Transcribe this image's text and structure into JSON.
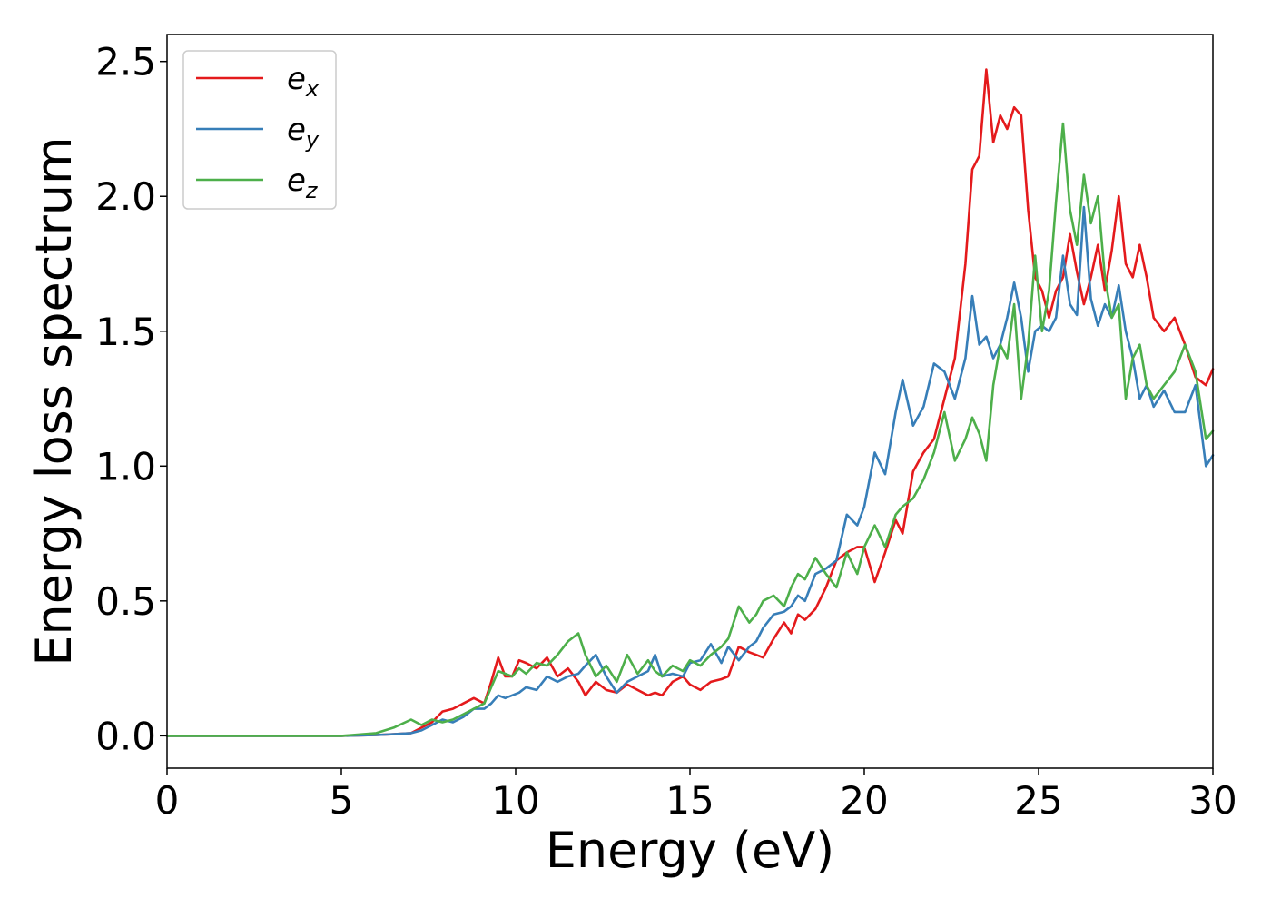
{
  "chart_data": {
    "type": "line",
    "title": "",
    "xlabel": "Energy (eV)",
    "ylabel": "Energy loss spectrum",
    "xlim": [
      0,
      30
    ],
    "ylim": [
      -0.12,
      2.6
    ],
    "xticks": [
      0,
      5,
      10,
      15,
      20,
      25,
      30
    ],
    "yticks": [
      0.0,
      0.5,
      1.0,
      1.5,
      2.0,
      2.5
    ],
    "xtick_labels": [
      "0",
      "5",
      "10",
      "15",
      "20",
      "25",
      "30"
    ],
    "ytick_labels": [
      "0.0",
      "0.5",
      "1.0",
      "1.5",
      "2.0",
      "2.5"
    ],
    "grid": false,
    "legend": "top-left",
    "series": [
      {
        "name": "e_x",
        "label_base": "e",
        "label_sub": "x",
        "color": "#e41a1c",
        "x": [
          0,
          5,
          6,
          6.5,
          7,
          7.3,
          7.6,
          7.9,
          8.2,
          8.5,
          8.8,
          9.1,
          9.3,
          9.5,
          9.7,
          9.9,
          10.1,
          10.3,
          10.6,
          10.9,
          11.2,
          11.5,
          11.8,
          12.0,
          12.3,
          12.6,
          12.9,
          13.2,
          13.5,
          13.8,
          14.0,
          14.2,
          14.5,
          14.8,
          15.0,
          15.3,
          15.6,
          15.9,
          16.1,
          16.4,
          16.7,
          16.9,
          17.1,
          17.4,
          17.7,
          17.9,
          18.1,
          18.3,
          18.6,
          18.9,
          19.2,
          19.5,
          19.8,
          20.0,
          20.3,
          20.6,
          20.9,
          21.1,
          21.4,
          21.7,
          22.0,
          22.3,
          22.6,
          22.9,
          23.1,
          23.3,
          23.5,
          23.7,
          23.9,
          24.1,
          24.3,
          24.5,
          24.7,
          24.9,
          25.1,
          25.3,
          25.5,
          25.7,
          25.9,
          26.1,
          26.3,
          26.5,
          26.7,
          26.9,
          27.1,
          27.3,
          27.5,
          27.7,
          27.9,
          28.1,
          28.3,
          28.6,
          28.9,
          29.2,
          29.5,
          29.8,
          30
        ],
        "y": [
          0,
          0,
          0.003,
          0.006,
          0.01,
          0.03,
          0.05,
          0.09,
          0.1,
          0.12,
          0.14,
          0.12,
          0.2,
          0.29,
          0.22,
          0.22,
          0.28,
          0.27,
          0.25,
          0.29,
          0.22,
          0.25,
          0.2,
          0.15,
          0.2,
          0.17,
          0.16,
          0.19,
          0.17,
          0.15,
          0.16,
          0.15,
          0.2,
          0.22,
          0.19,
          0.17,
          0.2,
          0.21,
          0.22,
          0.33,
          0.31,
          0.3,
          0.29,
          0.36,
          0.42,
          0.38,
          0.45,
          0.43,
          0.47,
          0.55,
          0.65,
          0.68,
          0.7,
          0.7,
          0.57,
          0.68,
          0.8,
          0.75,
          0.98,
          1.05,
          1.1,
          1.25,
          1.4,
          1.75,
          2.1,
          2.15,
          2.47,
          2.2,
          2.3,
          2.25,
          2.33,
          2.3,
          1.95,
          1.7,
          1.65,
          1.55,
          1.65,
          1.7,
          1.86,
          1.72,
          1.6,
          1.7,
          1.82,
          1.65,
          1.8,
          2.0,
          1.75,
          1.7,
          1.82,
          1.7,
          1.55,
          1.5,
          1.55,
          1.45,
          1.33,
          1.3,
          1.36
        ]
      },
      {
        "name": "e_y",
        "label_base": "e",
        "label_sub": "y",
        "color": "#377eb8",
        "x": [
          0,
          5,
          6,
          6.5,
          7,
          7.3,
          7.6,
          7.9,
          8.2,
          8.5,
          8.8,
          9.1,
          9.3,
          9.5,
          9.7,
          9.9,
          10.1,
          10.3,
          10.6,
          10.9,
          11.2,
          11.5,
          11.8,
          12.0,
          12.3,
          12.6,
          12.9,
          13.2,
          13.5,
          13.8,
          14.0,
          14.2,
          14.5,
          14.8,
          15.0,
          15.3,
          15.6,
          15.9,
          16.1,
          16.4,
          16.7,
          16.9,
          17.1,
          17.4,
          17.7,
          17.9,
          18.1,
          18.3,
          18.6,
          18.9,
          19.2,
          19.5,
          19.8,
          20.0,
          20.3,
          20.6,
          20.9,
          21.1,
          21.4,
          21.7,
          22.0,
          22.3,
          22.6,
          22.9,
          23.1,
          23.3,
          23.5,
          23.7,
          23.9,
          24.1,
          24.3,
          24.5,
          24.7,
          24.9,
          25.1,
          25.3,
          25.5,
          25.7,
          25.9,
          26.1,
          26.3,
          26.5,
          26.7,
          26.9,
          27.1,
          27.3,
          27.5,
          27.7,
          27.9,
          28.1,
          28.3,
          28.6,
          28.9,
          29.2,
          29.5,
          29.8,
          30
        ],
        "y": [
          0,
          0,
          0.003,
          0.006,
          0.01,
          0.02,
          0.04,
          0.06,
          0.05,
          0.07,
          0.1,
          0.1,
          0.12,
          0.15,
          0.14,
          0.15,
          0.16,
          0.18,
          0.17,
          0.22,
          0.2,
          0.22,
          0.23,
          0.26,
          0.3,
          0.22,
          0.16,
          0.2,
          0.22,
          0.24,
          0.3,
          0.22,
          0.23,
          0.22,
          0.27,
          0.28,
          0.34,
          0.27,
          0.33,
          0.28,
          0.33,
          0.35,
          0.4,
          0.45,
          0.46,
          0.48,
          0.52,
          0.5,
          0.6,
          0.62,
          0.65,
          0.82,
          0.78,
          0.85,
          1.05,
          0.97,
          1.2,
          1.32,
          1.15,
          1.22,
          1.38,
          1.35,
          1.25,
          1.4,
          1.63,
          1.45,
          1.48,
          1.4,
          1.45,
          1.55,
          1.68,
          1.55,
          1.35,
          1.5,
          1.52,
          1.5,
          1.55,
          1.78,
          1.6,
          1.56,
          1.96,
          1.62,
          1.52,
          1.6,
          1.55,
          1.67,
          1.5,
          1.4,
          1.25,
          1.3,
          1.22,
          1.28,
          1.2,
          1.2,
          1.3,
          1.0,
          1.04
        ]
      },
      {
        "name": "e_z",
        "label_base": "e",
        "label_sub": "z",
        "color": "#4daf4a",
        "x": [
          0,
          5,
          6,
          6.5,
          7,
          7.3,
          7.6,
          7.9,
          8.2,
          8.5,
          8.8,
          9.1,
          9.3,
          9.5,
          9.7,
          9.9,
          10.1,
          10.3,
          10.6,
          10.9,
          11.2,
          11.5,
          11.8,
          12.0,
          12.3,
          12.6,
          12.9,
          13.2,
          13.5,
          13.8,
          14.0,
          14.2,
          14.5,
          14.8,
          15.0,
          15.3,
          15.6,
          15.9,
          16.1,
          16.4,
          16.7,
          16.9,
          17.1,
          17.4,
          17.7,
          17.9,
          18.1,
          18.3,
          18.6,
          18.9,
          19.2,
          19.5,
          19.8,
          20.0,
          20.3,
          20.6,
          20.9,
          21.1,
          21.4,
          21.7,
          22.0,
          22.3,
          22.6,
          22.9,
          23.1,
          23.3,
          23.5,
          23.7,
          23.9,
          24.1,
          24.3,
          24.5,
          24.7,
          24.9,
          25.1,
          25.3,
          25.5,
          25.7,
          25.9,
          26.1,
          26.3,
          26.5,
          26.7,
          26.9,
          27.1,
          27.3,
          27.5,
          27.7,
          27.9,
          28.1,
          28.3,
          28.6,
          28.9,
          29.2,
          29.5,
          29.8,
          30
        ],
        "y": [
          0,
          0,
          0.01,
          0.03,
          0.06,
          0.04,
          0.06,
          0.05,
          0.06,
          0.08,
          0.1,
          0.12,
          0.18,
          0.24,
          0.23,
          0.22,
          0.25,
          0.23,
          0.27,
          0.26,
          0.3,
          0.35,
          0.38,
          0.3,
          0.22,
          0.26,
          0.2,
          0.3,
          0.23,
          0.28,
          0.24,
          0.22,
          0.26,
          0.24,
          0.28,
          0.26,
          0.3,
          0.33,
          0.36,
          0.48,
          0.42,
          0.45,
          0.5,
          0.52,
          0.48,
          0.55,
          0.6,
          0.58,
          0.66,
          0.6,
          0.55,
          0.68,
          0.6,
          0.7,
          0.78,
          0.7,
          0.82,
          0.85,
          0.88,
          0.95,
          1.05,
          1.2,
          1.02,
          1.1,
          1.18,
          1.12,
          1.02,
          1.3,
          1.45,
          1.4,
          1.6,
          1.25,
          1.45,
          1.78,
          1.5,
          1.65,
          1.98,
          2.27,
          1.95,
          1.82,
          2.08,
          1.9,
          2.0,
          1.7,
          1.55,
          1.6,
          1.25,
          1.4,
          1.45,
          1.3,
          1.25,
          1.3,
          1.35,
          1.45,
          1.35,
          1.1,
          1.13
        ]
      }
    ]
  }
}
